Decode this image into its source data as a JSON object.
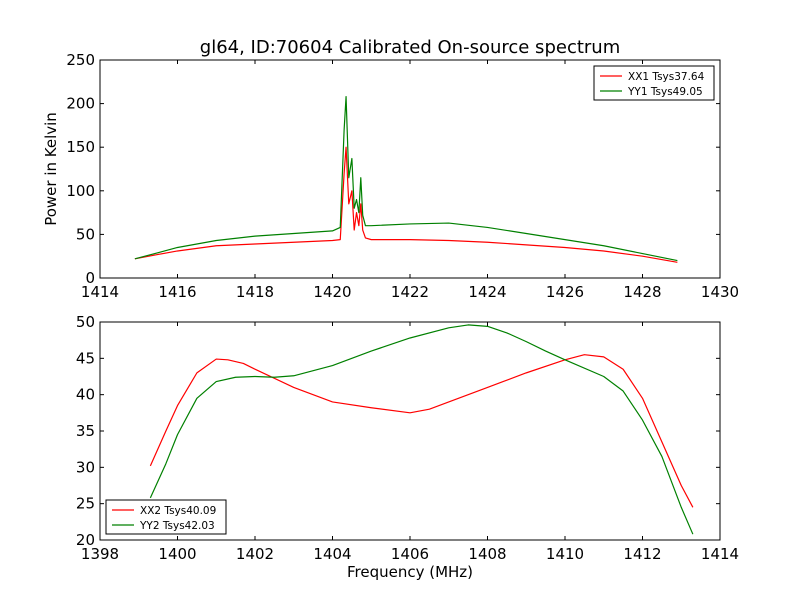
{
  "title": "gl64, ID:70604 Calibrated On-source spectrum",
  "colors": {
    "red": "#ff0000",
    "green": "#008000",
    "axis": "#000000",
    "background": "#ffffff"
  },
  "chart_data": [
    {
      "type": "line",
      "title": "gl64, ID:70604 Calibrated On-source spectrum",
      "xlabel": "",
      "ylabel": "Power in Kelvin",
      "xlim": [
        1414,
        1430
      ],
      "ylim": [
        0,
        250
      ],
      "xticks": [
        1414,
        1416,
        1418,
        1420,
        1422,
        1424,
        1426,
        1428,
        1430
      ],
      "yticks": [
        0,
        50,
        100,
        150,
        200,
        250
      ],
      "grid": false,
      "legend_position": "top-right",
      "series": [
        {
          "name": "XX1 Tsys37.64",
          "color": "#ff0000",
          "x": [
            1414.9,
            1415.5,
            1416.0,
            1417.0,
            1418.0,
            1419.0,
            1420.0,
            1420.2,
            1420.3,
            1420.35,
            1420.42,
            1420.5,
            1420.56,
            1420.62,
            1420.68,
            1420.73,
            1420.78,
            1420.85,
            1421.0,
            1422.0,
            1423.0,
            1424.0,
            1425.0,
            1426.0,
            1427.0,
            1428.0,
            1428.9
          ],
          "y": [
            22,
            27,
            31,
            37,
            39,
            41,
            43,
            44,
            120,
            150,
            85,
            100,
            55,
            75,
            60,
            85,
            55,
            46,
            44,
            44,
            43,
            41,
            38,
            35,
            31,
            25,
            18
          ]
        },
        {
          "name": "YY1 Tsys49.05",
          "color": "#008000",
          "x": [
            1414.9,
            1415.5,
            1416.0,
            1417.0,
            1418.0,
            1419.0,
            1420.0,
            1420.2,
            1420.3,
            1420.35,
            1420.42,
            1420.5,
            1420.56,
            1420.62,
            1420.68,
            1420.73,
            1420.78,
            1420.85,
            1421.0,
            1422.0,
            1423.0,
            1424.0,
            1425.0,
            1426.0,
            1427.0,
            1428.0,
            1428.9
          ],
          "y": [
            22,
            29,
            35,
            43,
            48,
            51,
            54,
            58,
            170,
            208,
            115,
            137,
            80,
            90,
            75,
            115,
            72,
            60,
            60,
            62,
            63,
            58,
            51,
            44,
            37,
            28,
            20
          ]
        }
      ]
    },
    {
      "type": "line",
      "title": "",
      "xlabel": "Frequency (MHz)",
      "ylabel": "",
      "xlim": [
        1398,
        1414
      ],
      "ylim": [
        20,
        50
      ],
      "xticks": [
        1398,
        1400,
        1402,
        1404,
        1406,
        1408,
        1410,
        1412,
        1414
      ],
      "yticks": [
        20,
        25,
        30,
        35,
        40,
        45,
        50
      ],
      "grid": false,
      "legend_position": "bottom-left",
      "series": [
        {
          "name": "XX2 Tsys40.09",
          "color": "#ff0000",
          "x": [
            1399.3,
            1399.7,
            1400.0,
            1400.5,
            1401.0,
            1401.3,
            1401.7,
            1402.0,
            1403.0,
            1404.0,
            1405.0,
            1406.0,
            1406.5,
            1407.0,
            1408.0,
            1409.0,
            1410.0,
            1410.5,
            1411.0,
            1411.5,
            1412.0,
            1412.5,
            1413.0,
            1413.3
          ],
          "y": [
            30.2,
            35.0,
            38.5,
            43.0,
            44.9,
            44.8,
            44.3,
            43.5,
            41.0,
            39.0,
            38.2,
            37.5,
            38.0,
            39.0,
            41.0,
            43.0,
            44.8,
            45.5,
            45.2,
            43.5,
            39.5,
            33.5,
            27.5,
            24.5
          ]
        },
        {
          "name": "YY2 Tsys42.03",
          "color": "#008000",
          "x": [
            1399.3,
            1399.7,
            1400.0,
            1400.5,
            1401.0,
            1401.5,
            1402.0,
            1402.5,
            1403.0,
            1404.0,
            1405.0,
            1406.0,
            1407.0,
            1407.5,
            1408.0,
            1408.5,
            1409.0,
            1409.5,
            1410.0,
            1411.0,
            1411.5,
            1412.0,
            1412.5,
            1413.0,
            1413.3
          ],
          "y": [
            25.8,
            30.5,
            34.5,
            39.5,
            41.8,
            42.4,
            42.5,
            42.4,
            42.6,
            44.0,
            46.0,
            47.8,
            49.2,
            49.6,
            49.4,
            48.5,
            47.3,
            46.0,
            44.8,
            42.5,
            40.5,
            36.5,
            31.5,
            24.5,
            20.8
          ]
        }
      ]
    }
  ]
}
